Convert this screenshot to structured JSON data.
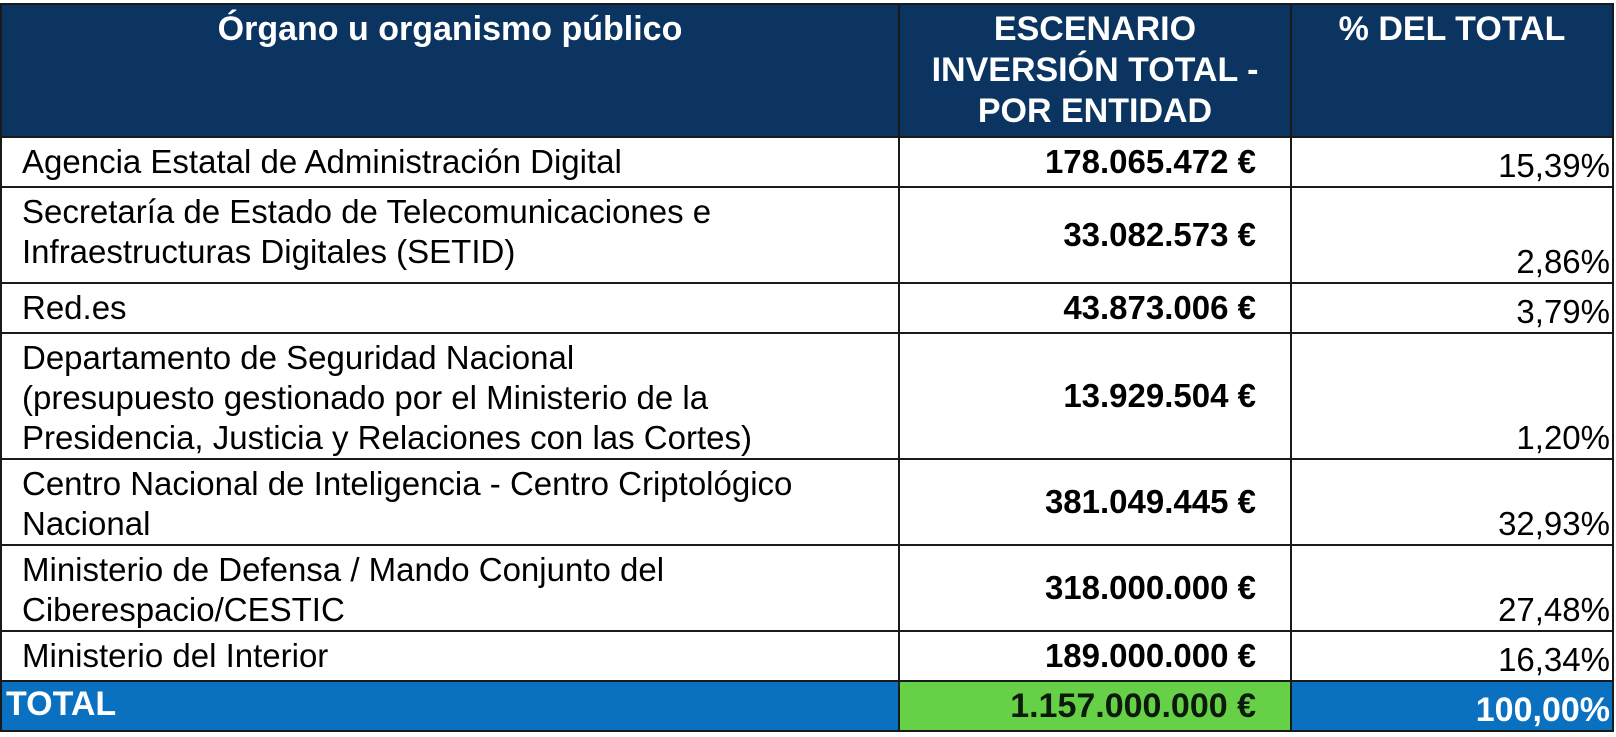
{
  "table": {
    "headers": {
      "entity": "Órgano u organismo público",
      "amount": "ESCENARIO INVERSIÓN TOTAL - POR ENTIDAD",
      "percent": "% DEL TOTAL"
    },
    "rows": [
      {
        "entity_lines": [
          "Agencia Estatal de Administración Digital"
        ],
        "amount": "178.065.472 €",
        "percent": "15,39%"
      },
      {
        "entity_lines": [
          "Secretaría de Estado de Telecomunicaciones e",
          "Infraestructuras Digitales (SETID)"
        ],
        "amount": "33.082.573 €",
        "percent": "2,86%"
      },
      {
        "entity_lines": [
          "Red.es"
        ],
        "amount": "43.873.006 €",
        "percent": "3,79%"
      },
      {
        "entity_lines": [
          "Departamento de Seguridad Nacional",
          "(presupuesto gestionado por el Ministerio de la",
          "Presidencia, Justicia y Relaciones con las Cortes)"
        ],
        "amount": "13.929.504 €",
        "percent": "1,20%"
      },
      {
        "entity_lines": [
          "Centro Nacional de Inteligencia - Centro Criptológico",
          "Nacional"
        ],
        "amount": "381.049.445 €",
        "percent": "32,93%"
      },
      {
        "entity_lines": [
          "Ministerio de Defensa / Mando Conjunto del",
          "Ciberespacio/CESTIC"
        ],
        "amount": "318.000.000 €",
        "percent": "27,48%"
      },
      {
        "entity_lines": [
          "Ministerio del Interior"
        ],
        "amount": "189.000.000 €",
        "percent": "16,34%"
      }
    ],
    "total": {
      "label": "TOTAL",
      "amount": "1.157.000.000 €",
      "percent": "100,00%"
    }
  },
  "colors": {
    "header_background": "#0b3461",
    "total_background": "#0a70c0",
    "total_amount_background": "#66d146"
  }
}
